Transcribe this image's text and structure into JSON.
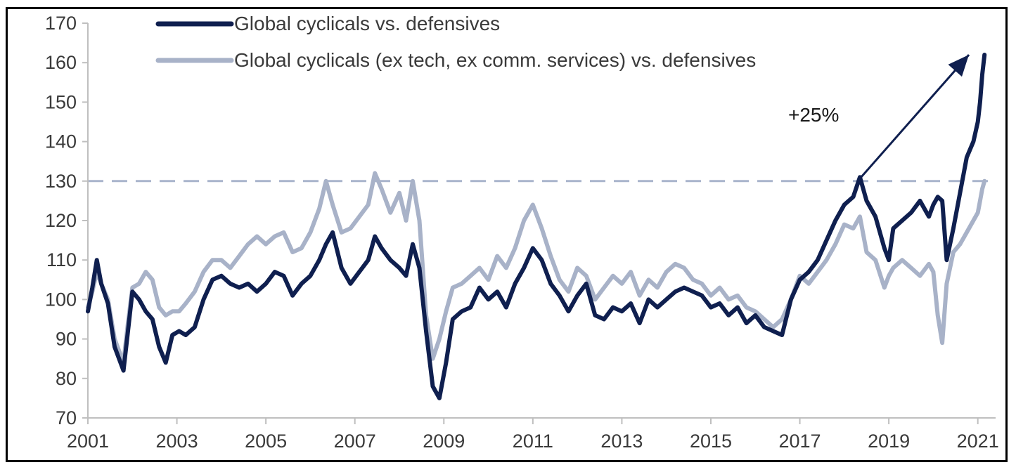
{
  "chart_data": {
    "type": "line",
    "title": "",
    "xlabel": "",
    "ylabel": "",
    "xlim": [
      2001,
      2021.4
    ],
    "ylim": [
      70,
      170
    ],
    "y_ticks": [
      70,
      80,
      90,
      100,
      110,
      120,
      130,
      140,
      150,
      160,
      170
    ],
    "x_ticks": [
      2001,
      2003,
      2005,
      2007,
      2009,
      2011,
      2013,
      2015,
      2017,
      2019,
      2021
    ],
    "grid": false,
    "legend_position": "top-left",
    "reference_line": {
      "y": 130,
      "style": "dashed",
      "color": "#a9b4cc"
    },
    "annotation": {
      "text": "+25%",
      "arrow_from": [
        2018.3,
        130
      ],
      "arrow_to": [
        2020.8,
        162
      ]
    },
    "series": [
      {
        "name": "Global cyclicals vs. defensives",
        "color": "#0f1f4f",
        "x": [
          2001.0,
          2001.1,
          2001.2,
          2001.3,
          2001.45,
          2001.6,
          2001.8,
          2001.9,
          2002.0,
          2002.15,
          2002.3,
          2002.45,
          2002.6,
          2002.75,
          2002.9,
          2003.05,
          2003.2,
          2003.4,
          2003.6,
          2003.8,
          2004.0,
          2004.2,
          2004.4,
          2004.6,
          2004.8,
          2005.0,
          2005.2,
          2005.4,
          2005.6,
          2005.8,
          2006.0,
          2006.2,
          2006.35,
          2006.5,
          2006.7,
          2006.9,
          2007.1,
          2007.3,
          2007.45,
          2007.6,
          2007.8,
          2008.0,
          2008.15,
          2008.3,
          2008.45,
          2008.6,
          2008.75,
          2008.9,
          2009.05,
          2009.2,
          2009.4,
          2009.6,
          2009.8,
          2010.0,
          2010.2,
          2010.4,
          2010.6,
          2010.8,
          2011.0,
          2011.2,
          2011.4,
          2011.6,
          2011.8,
          2012.0,
          2012.2,
          2012.4,
          2012.6,
          2012.8,
          2013.0,
          2013.2,
          2013.4,
          2013.6,
          2013.8,
          2014.0,
          2014.2,
          2014.4,
          2014.6,
          2014.8,
          2015.0,
          2015.2,
          2015.4,
          2015.6,
          2015.8,
          2016.0,
          2016.2,
          2016.4,
          2016.6,
          2016.8,
          2017.0,
          2017.2,
          2017.4,
          2017.6,
          2017.8,
          2018.0,
          2018.2,
          2018.35,
          2018.5,
          2018.7,
          2018.9,
          2019.0,
          2019.1,
          2019.3,
          2019.5,
          2019.7,
          2019.9,
          2020.0,
          2020.1,
          2020.2,
          2020.3,
          2020.45,
          2020.6,
          2020.75,
          2020.9,
          2021.0,
          2021.05,
          2021.1,
          2021.15
        ],
        "y": [
          97,
          103,
          110,
          104,
          99,
          88,
          82,
          92,
          102,
          100,
          97,
          95,
          88,
          84,
          91,
          92,
          91,
          93,
          100,
          105,
          106,
          104,
          103,
          104,
          102,
          104,
          107,
          106,
          101,
          104,
          106,
          110,
          114,
          117,
          108,
          104,
          107,
          110,
          116,
          113,
          110,
          108,
          106,
          114,
          108,
          92,
          78,
          75,
          84,
          95,
          97,
          98,
          103,
          100,
          102,
          98,
          104,
          108,
          113,
          110,
          104,
          101,
          97,
          101,
          104,
          96,
          95,
          98,
          97,
          99,
          94,
          100,
          98,
          100,
          102,
          103,
          102,
          101,
          98,
          99,
          96,
          98,
          94,
          96,
          93,
          92,
          91,
          100,
          105,
          107,
          110,
          115,
          120,
          124,
          126,
          131,
          125,
          121,
          113,
          110,
          118,
          120,
          122,
          125,
          121,
          124,
          126,
          125,
          110,
          118,
          127,
          136,
          140,
          145,
          150,
          157,
          162
        ]
      },
      {
        "name": "Global cyclicals (ex tech, ex comm. services) vs. defensives",
        "color": "#a8b2c8",
        "x": [
          2001.0,
          2001.1,
          2001.2,
          2001.3,
          2001.45,
          2001.6,
          2001.8,
          2001.9,
          2002.0,
          2002.15,
          2002.3,
          2002.45,
          2002.6,
          2002.75,
          2002.9,
          2003.05,
          2003.2,
          2003.4,
          2003.6,
          2003.8,
          2004.0,
          2004.2,
          2004.4,
          2004.6,
          2004.8,
          2005.0,
          2005.2,
          2005.4,
          2005.6,
          2005.8,
          2006.0,
          2006.2,
          2006.35,
          2006.5,
          2006.7,
          2006.9,
          2007.1,
          2007.3,
          2007.45,
          2007.6,
          2007.8,
          2008.0,
          2008.15,
          2008.3,
          2008.45,
          2008.6,
          2008.75,
          2008.9,
          2009.05,
          2009.2,
          2009.4,
          2009.6,
          2009.8,
          2010.0,
          2010.2,
          2010.4,
          2010.6,
          2010.8,
          2011.0,
          2011.2,
          2011.4,
          2011.6,
          2011.8,
          2012.0,
          2012.2,
          2012.4,
          2012.6,
          2012.8,
          2013.0,
          2013.2,
          2013.4,
          2013.6,
          2013.8,
          2014.0,
          2014.2,
          2014.4,
          2014.6,
          2014.8,
          2015.0,
          2015.2,
          2015.4,
          2015.6,
          2015.8,
          2016.0,
          2016.2,
          2016.4,
          2016.6,
          2016.8,
          2017.0,
          2017.2,
          2017.4,
          2017.6,
          2017.8,
          2018.0,
          2018.2,
          2018.35,
          2018.5,
          2018.7,
          2018.9,
          2019.0,
          2019.1,
          2019.3,
          2019.5,
          2019.7,
          2019.9,
          2020.0,
          2020.1,
          2020.2,
          2020.3,
          2020.45,
          2020.6,
          2020.75,
          2020.9,
          2021.0,
          2021.05,
          2021.1,
          2021.15
        ],
        "y": [
          98,
          102,
          107,
          104,
          100,
          90,
          84,
          94,
          103,
          104,
          107,
          105,
          98,
          96,
          97,
          97,
          99,
          102,
          107,
          110,
          110,
          108,
          111,
          114,
          116,
          114,
          116,
          117,
          112,
          113,
          117,
          123,
          130,
          124,
          117,
          118,
          121,
          124,
          132,
          128,
          122,
          127,
          120,
          130,
          120,
          96,
          85,
          90,
          97,
          103,
          104,
          106,
          108,
          105,
          111,
          108,
          113,
          120,
          124,
          118,
          111,
          105,
          102,
          108,
          106,
          100,
          103,
          106,
          104,
          107,
          101,
          105,
          103,
          107,
          109,
          108,
          105,
          104,
          101,
          103,
          100,
          101,
          98,
          97,
          95,
          93,
          95,
          100,
          106,
          104,
          107,
          110,
          114,
          119,
          118,
          121,
          112,
          110,
          103,
          106,
          108,
          110,
          108,
          106,
          109,
          107,
          96,
          89,
          104,
          112,
          114,
          117,
          120,
          122,
          125,
          128,
          130
        ]
      }
    ]
  }
}
